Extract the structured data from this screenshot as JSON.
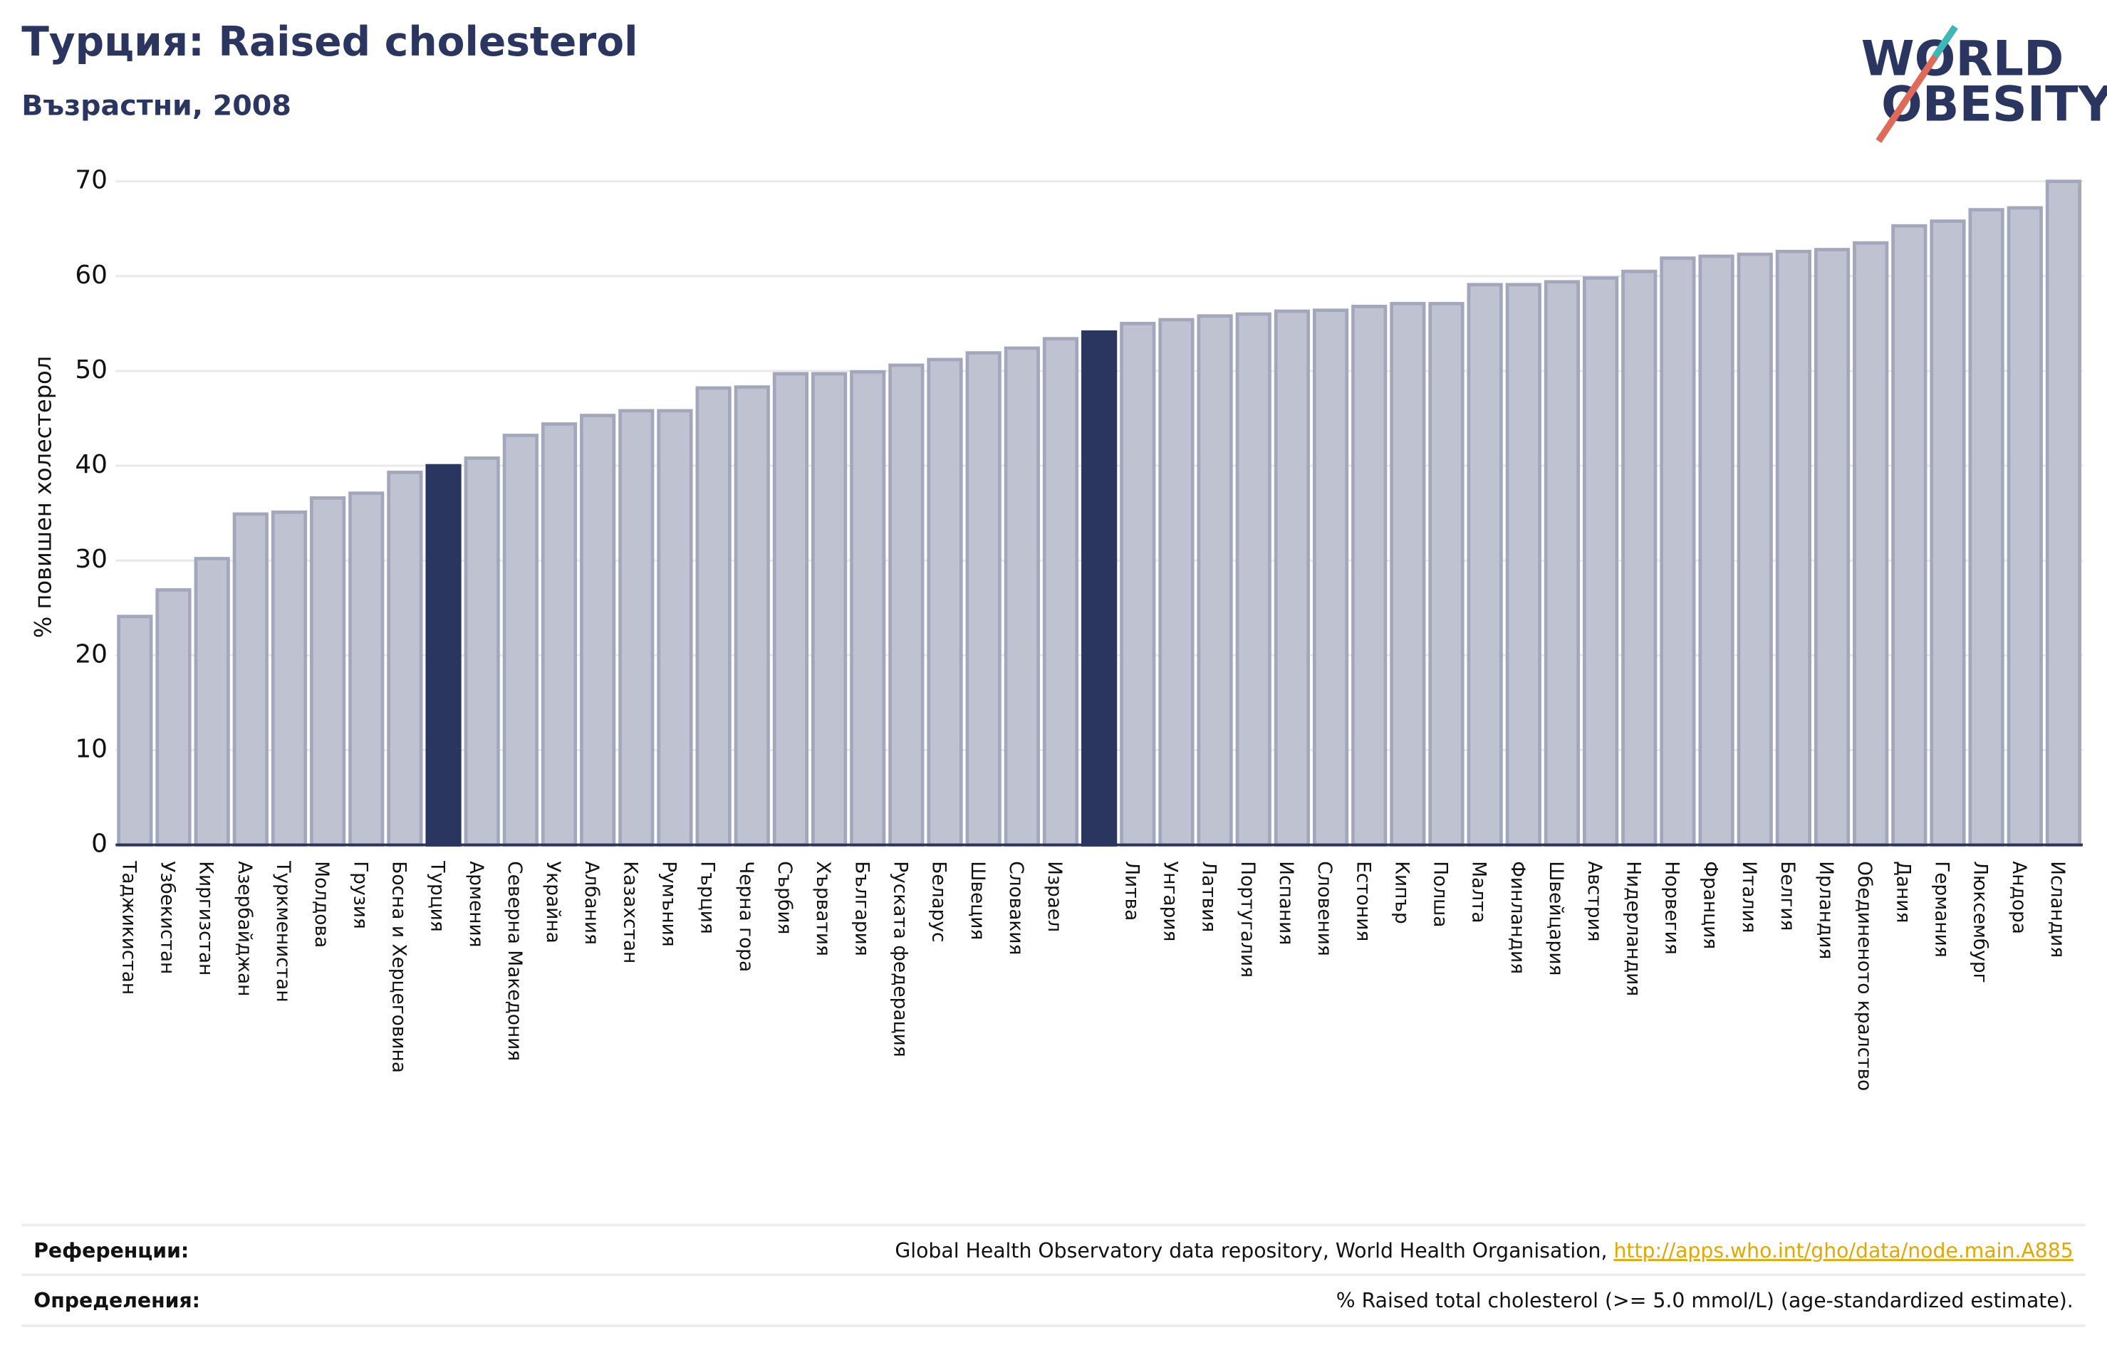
{
  "chart_data": {
    "type": "bar",
    "title": "Турция: Raised cholesterol",
    "subtitle": "Възрастни, 2008",
    "logo": {
      "line1": "WORLD",
      "line2": "OBESITY"
    },
    "y_label": "% повишен холестерол",
    "categories": [
      "Таджикистан",
      "Узбекистан",
      "Киргизстан",
      "Азербайджан",
      "Туркменистан",
      "Молдова",
      "Грузия",
      "Босна и Херцеговина",
      "Турция",
      "Армения",
      "Северна Македония",
      "Украйна",
      "Албания",
      "Казахстан",
      "Румъния",
      "Гърция",
      "Черна гора",
      "Сърбия",
      "Хърватия",
      "България",
      "Руската федерация",
      "Беларус",
      "Швеция",
      "Словакия",
      "Израел",
      null,
      "Литва",
      "Унгария",
      "Латвия",
      "Португалия",
      "Испания",
      "Словения",
      "Естония",
      "Кипър",
      "Полша",
      "Малта",
      "Финландия",
      "Швейцария",
      "Австрия",
      "Нидерландия",
      "Норвегия",
      "Франция",
      "Италия",
      "Белгия",
      "Ирландия",
      "Обединеното кралство",
      "Дания",
      "Германия",
      "Люксембург",
      "Андора",
      "Исландия"
    ],
    "values": [
      24.1,
      26.9,
      30.2,
      34.9,
      35.1,
      36.6,
      37.1,
      39.3,
      40.0,
      40.8,
      43.2,
      44.4,
      45.3,
      45.8,
      45.8,
      48.2,
      48.3,
      49.7,
      49.7,
      49.9,
      50.6,
      51.2,
      51.9,
      52.4,
      53.4,
      54.1,
      55.0,
      55.4,
      55.8,
      56.0,
      56.3,
      56.4,
      56.8,
      57.1,
      57.1,
      59.1,
      59.1,
      59.4,
      59.8,
      60.5,
      61.9,
      62.1,
      62.3,
      62.6,
      62.8,
      63.5,
      65.3,
      65.8,
      67.0,
      67.2,
      70.0
    ],
    "color": "#bfc2d0",
    "highlight_color": "#2a3560",
    "highlight": [
      8,
      25
    ],
    "ylim": [
      0,
      70
    ],
    "yticks": [
      0,
      10,
      20,
      30,
      40,
      50,
      60,
      70
    ],
    "grid": true
  },
  "footer": {
    "references_label": "Референции:",
    "references_text": "Global Health Observatory data repository, World Health Organisation, ",
    "references_link": "http://apps.who.int/gho/data/node.main.A885",
    "definitions_label": "Определения:",
    "definitions_text": "% Raised total cholesterol (>= 5.0 mmol/L) (age-standardized estimate)."
  }
}
